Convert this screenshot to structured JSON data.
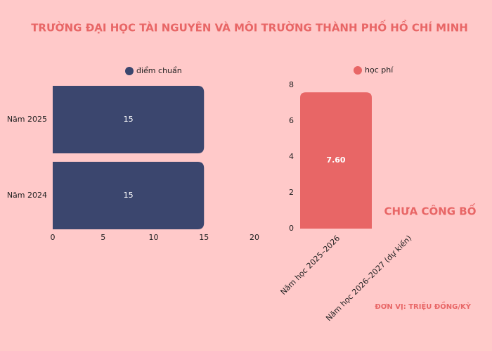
{
  "title": "TRƯỜNG ĐẠI HỌC TÀI NGUYÊN VÀ MÔI TRƯỜNG THÀNH PHỐ HỒ CHÍ MINH",
  "chart_data": [
    {
      "type": "hbar",
      "categories": [
        "Năm 2025",
        "Năm 2024"
      ],
      "series": [
        {
          "name": "điểm chuẩn",
          "color": "#3b466e",
          "values": [
            15,
            15
          ]
        }
      ],
      "xlim": [
        0,
        20
      ],
      "xticks": [
        0,
        5,
        10,
        15,
        20
      ]
    },
    {
      "type": "bar",
      "categories": [
        "Năm học 2025–2026",
        "Năm học 2026–2027 (dự kiến)"
      ],
      "series": [
        {
          "name": "học phí",
          "color": "#e86666",
          "values": [
            7.6,
            null
          ],
          "value_labels": [
            "7.60",
            null
          ]
        }
      ],
      "ylim": [
        0,
        8
      ],
      "yticks": [
        0,
        2,
        4,
        6,
        8
      ],
      "annotations": [
        "CHƯA CÔNG BỐ",
        "ĐƠN VỊ: TRIỆU ĐỒNG/KỲ"
      ]
    }
  ]
}
